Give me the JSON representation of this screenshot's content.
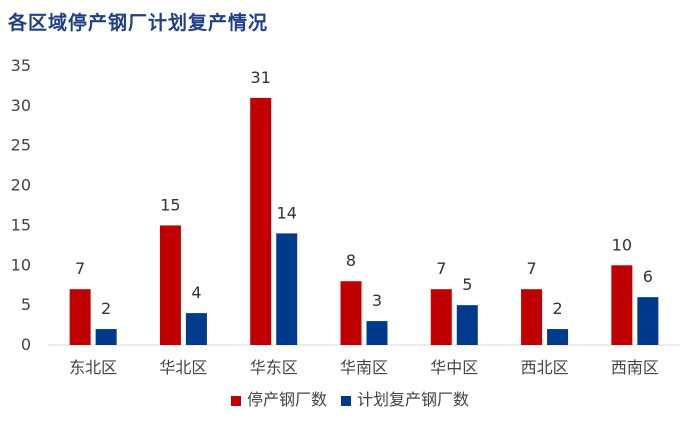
{
  "chart_data": {
    "type": "bar",
    "title": "各区域停产钢厂计划复产情况",
    "categories": [
      "东北区",
      "华北区",
      "华东区",
      "华南区",
      "华中区",
      "西北区",
      "西南区"
    ],
    "series": [
      {
        "name": "停产钢厂数",
        "values": [
          7,
          15,
          31,
          8,
          7,
          7,
          10
        ],
        "color": "#c00000"
      },
      {
        "name": "计划复产钢厂数",
        "values": [
          2,
          4,
          14,
          3,
          5,
          2,
          6
        ],
        "color": "#003a8c"
      }
    ],
    "yticks": [
      "0",
      "5",
      "10",
      "15",
      "20",
      "25",
      "30",
      "35"
    ],
    "ylim": [
      0,
      35
    ],
    "grid": false,
    "legend_position": "bottom"
  }
}
